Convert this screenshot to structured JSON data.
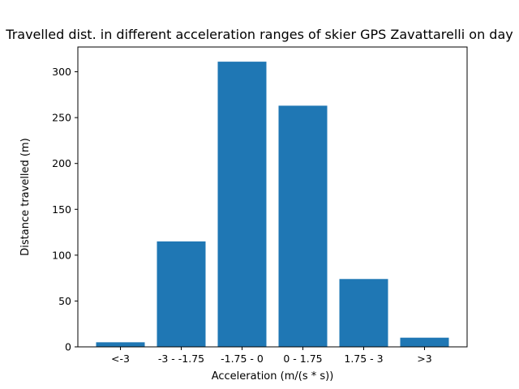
{
  "chart_data": {
    "type": "bar",
    "title": "Travelled dist. in different acceleration ranges of skier GPS Zavattarelli  on day",
    "xlabel": "Acceleration (m/(s * s))",
    "ylabel": "Distance travelled (m)",
    "categories": [
      "<-3",
      "-3 - -1.75",
      "-1.75 - 0",
      "0 - 1.75",
      "1.75 - 3",
      ">3"
    ],
    "values": [
      5,
      115,
      311,
      263,
      74,
      10
    ],
    "ylim": [
      0,
      327
    ],
    "yticks": [
      0,
      50,
      100,
      150,
      200,
      250,
      300
    ],
    "grid": false,
    "bar_color": "#1f77b4"
  }
}
